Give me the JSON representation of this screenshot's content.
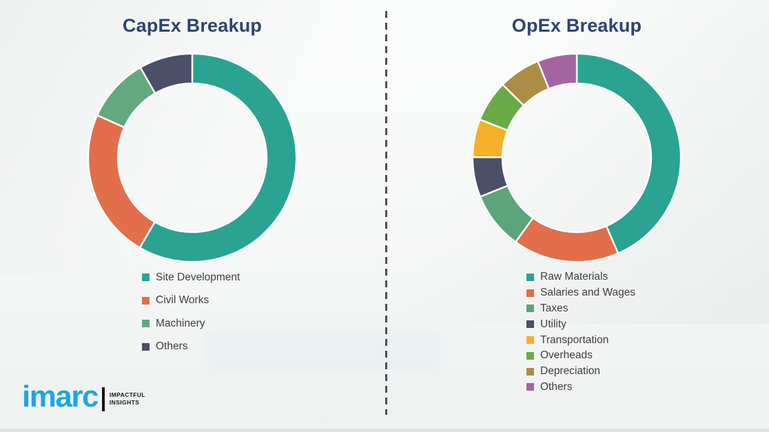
{
  "branding": {
    "logo_text": "imarc",
    "tagline_line1": "IMPACTFUL",
    "tagline_line2": "INSIGHTS",
    "logo_color": "#1EA6DF"
  },
  "colors": {
    "title_text": "#2D4373",
    "legend_text": "#3F3F3F",
    "divider": "#4D4F52",
    "slice_gap": "#FFFFFF",
    "background": "#F6F7F7"
  },
  "chart_data": [
    {
      "type": "pie",
      "subtype": "donut",
      "title": "CapEx Breakup",
      "legend_position": "bottom",
      "start_angle_deg": 0,
      "direction": "clockwise",
      "series": [
        {
          "label": "Site Development",
          "value": 58.4,
          "color": "#2AA392"
        },
        {
          "label": "Civil Works",
          "value": 23.3,
          "color": "#E26E4C"
        },
        {
          "label": "Machinery",
          "value": 10.0,
          "color": "#63A87E"
        },
        {
          "label": "Others",
          "value": 8.3,
          "color": "#4B4F67"
        }
      ]
    },
    {
      "type": "pie",
      "subtype": "donut",
      "title": "OpEx Breakup",
      "legend_position": "bottom",
      "start_angle_deg": 0,
      "direction": "clockwise",
      "series": [
        {
          "label": "Raw Materials",
          "value": 43.5,
          "color": "#2AA392"
        },
        {
          "label": "Salaries and Wages",
          "value": 16.5,
          "color": "#E26E4C"
        },
        {
          "label": "Taxes",
          "value": 8.9,
          "color": "#5CA47A"
        },
        {
          "label": "Utility",
          "value": 6.2,
          "color": "#4B4F67"
        },
        {
          "label": "Transportation",
          "value": 5.9,
          "color": "#F5B02B"
        },
        {
          "label": "Overheads",
          "value": 6.4,
          "color": "#6BAB45"
        },
        {
          "label": "Depreciation",
          "value": 6.5,
          "color": "#AC8D45"
        },
        {
          "label": "Others",
          "value": 6.1,
          "color": "#A465A1"
        }
      ]
    }
  ]
}
